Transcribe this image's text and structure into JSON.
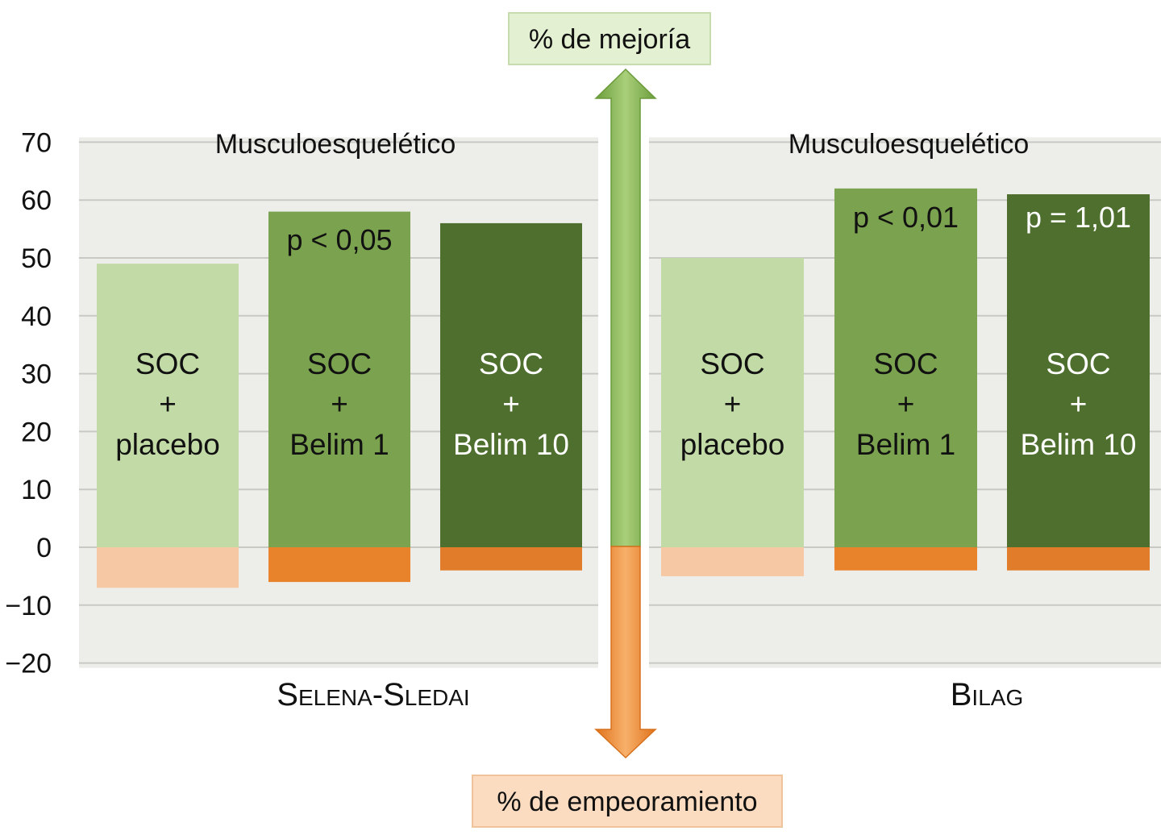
{
  "top_label": "% de mejoría",
  "bottom_label": "% de empeoramiento",
  "colors": {
    "placebo_pos": "#c2dba6",
    "belim1_pos": "#7ba24e",
    "belim10_pos": "#4f6f2e",
    "placebo_neg": "#f6c8a4",
    "belim1_neg": "#e8832c",
    "belim10_neg": "#e07c2a",
    "arrow_up": "#7fb24e",
    "arrow_down": "#ee8a30",
    "top_box": "#e3f0d2",
    "bottom_box": "#fbdcc0",
    "panel_bg": "#ededea"
  },
  "chart_data": [
    {
      "type": "bar",
      "title": "Musculoesquelético",
      "xlabel": "Selena-Sledai",
      "ylabel": "",
      "ylim": [
        -20,
        70
      ],
      "yticks": [
        "70",
        "60",
        "50",
        "40",
        "30",
        "20",
        "10",
        "0",
        "−10",
        "−20"
      ],
      "grid": true,
      "categories": [
        "SOC + placebo",
        "SOC + Belim 1",
        "SOC + Belim 10"
      ],
      "category_lines": [
        [
          "SOC",
          "+",
          "placebo"
        ],
        [
          "SOC",
          "+",
          "Belim 1"
        ],
        [
          "SOC",
          "+",
          "Belim 10"
        ]
      ],
      "series": [
        {
          "name": "% de mejoría",
          "values": [
            49,
            58,
            56
          ]
        },
        {
          "name": "% de empeoramiento",
          "values": [
            -7,
            -6,
            -4
          ]
        }
      ],
      "annotations": [
        "",
        "p < 0,05",
        ""
      ]
    },
    {
      "type": "bar",
      "title": "Musculoesquelético",
      "xlabel": "Bilag",
      "ylabel": "",
      "ylim": [
        -20,
        70
      ],
      "grid": true,
      "categories": [
        "SOC + placebo",
        "SOC + Belim 1",
        "SOC + Belim 10"
      ],
      "category_lines": [
        [
          "SOC",
          "+",
          "placebo"
        ],
        [
          "SOC",
          "+",
          "Belim 1"
        ],
        [
          "SOC",
          "+",
          "Belim 10"
        ]
      ],
      "series": [
        {
          "name": "% de mejoría",
          "values": [
            50,
            62,
            61
          ]
        },
        {
          "name": "% de empeoramiento",
          "values": [
            -5,
            -4,
            -4
          ]
        }
      ],
      "annotations": [
        "",
        "p < 0,01",
        "p = 1,01"
      ]
    }
  ]
}
